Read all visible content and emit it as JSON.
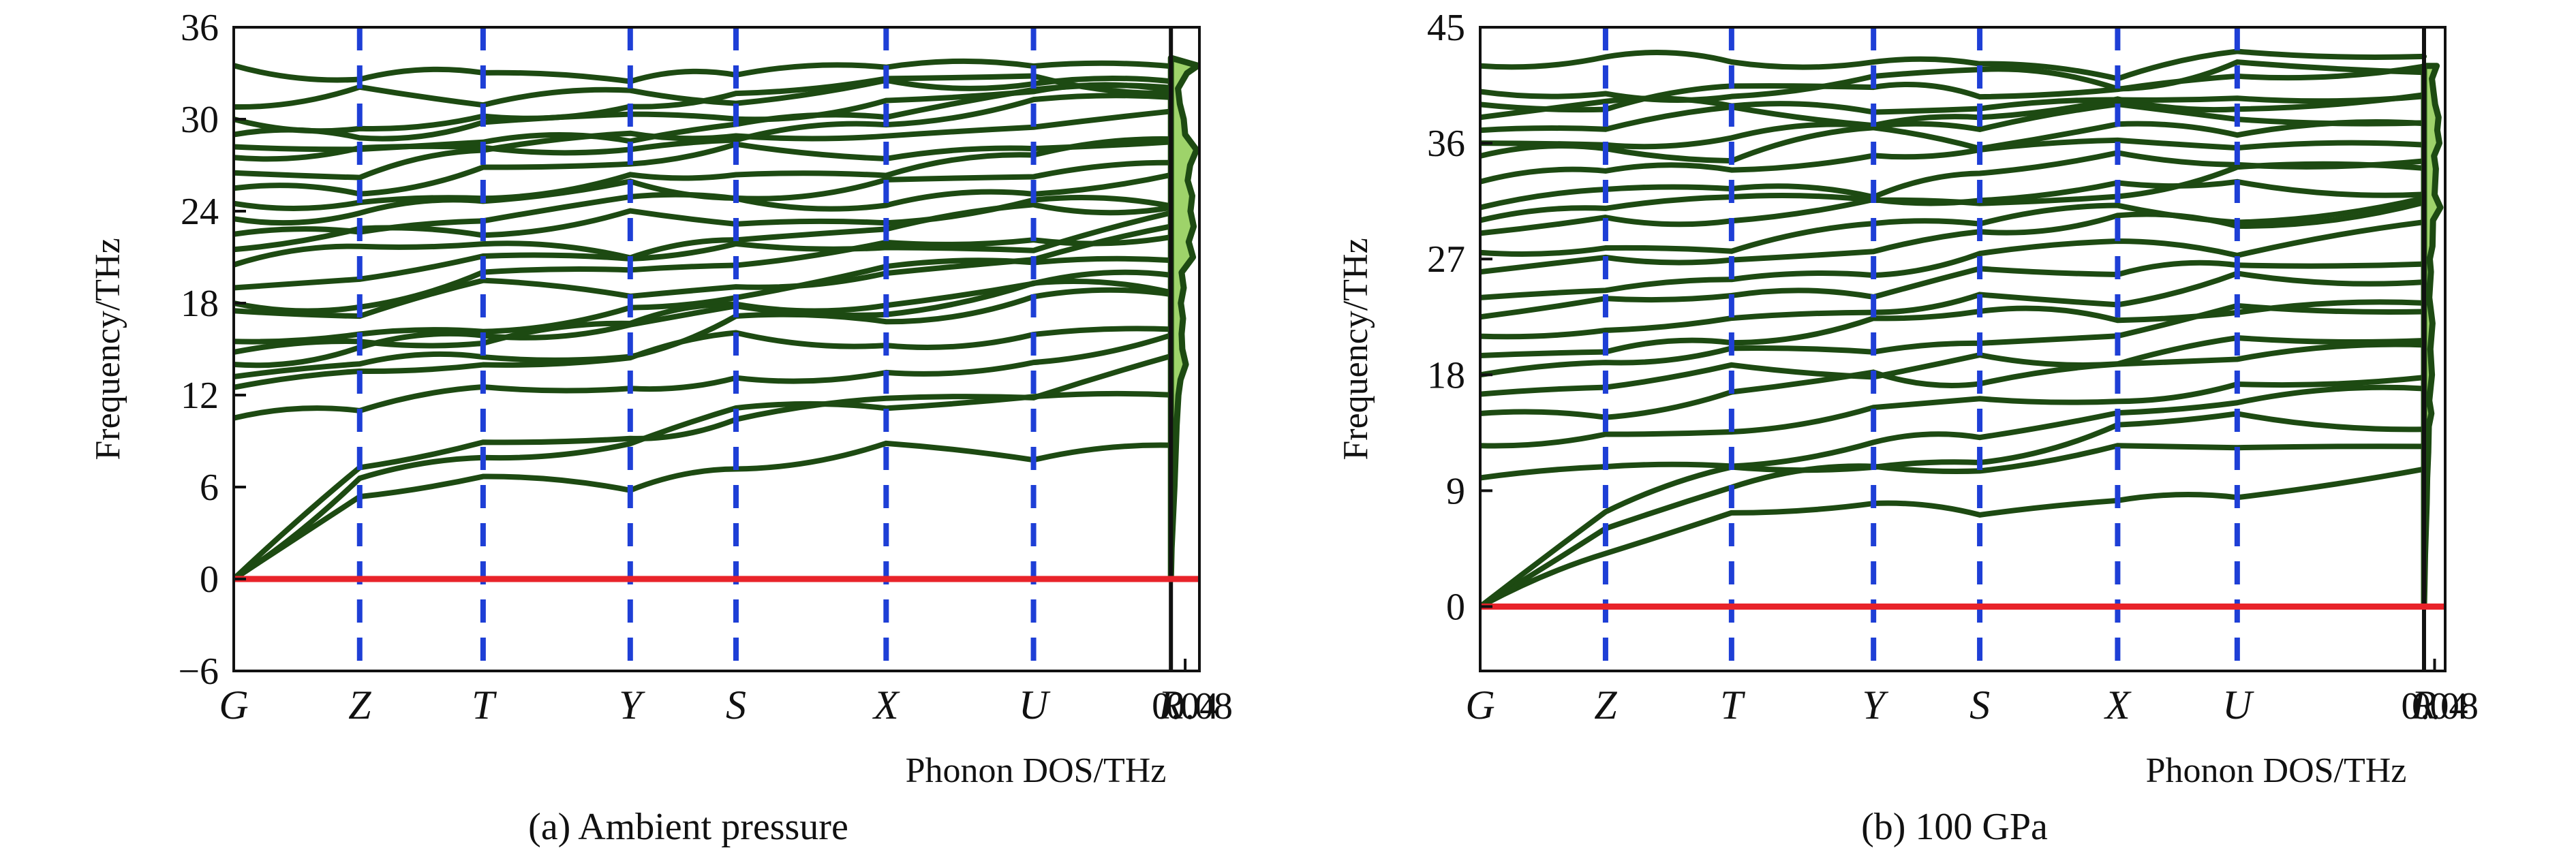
{
  "figure": {
    "caption_a": "(a) Ambient pressure",
    "caption_b": "(b) 100 GPa"
  },
  "colors": {
    "band": "#1d4a12",
    "band_edge": "#8a7a3a",
    "kpath": "#1e3fd6",
    "zero_line": "#e8232a",
    "dos_fill": "#9ed36a",
    "dos_line": "#1d4a12",
    "axis": "#111111"
  },
  "chart_data": [
    {
      "type": "line",
      "title": "(a) Ambient pressure",
      "ylabel": "Frequency/THz",
      "xlabel_dos": "Phonon DOS/THz",
      "ylim": [
        -6,
        36
      ],
      "yticks": [
        -6,
        0,
        6,
        12,
        18,
        24,
        30,
        36
      ],
      "kpoints": [
        "G",
        "Z",
        "T",
        "Y",
        "S",
        "X",
        "U",
        "R"
      ],
      "dos_xlim": [
        0,
        0.08
      ],
      "dos_xticks": [
        "0.04",
        "0.08"
      ],
      "zero_line": 0,
      "band_start_values": [
        0.0,
        0.0,
        0.0,
        10.5,
        12.5,
        13.2,
        14.0,
        14.8,
        15.5,
        17.5,
        18.0,
        19.0,
        20.5,
        21.5,
        22.5,
        23.5,
        24.5,
        25.5,
        26.5,
        27.5,
        28.2,
        29.0,
        30.0,
        30.8,
        33.5
      ],
      "band_end_values": [
        9.0,
        13.0,
        13.5,
        15.5,
        17.0,
        18.5,
        19.5,
        20.5,
        21.0,
        22.0,
        22.5,
        23.0,
        24.0,
        25.0,
        26.5,
        27.5,
        28.0,
        29.0,
        30.5,
        31.0,
        31.5,
        32.0,
        32.5,
        33.0,
        33.5
      ],
      "dos": {
        "freq": [
          0,
          2,
          4,
          6,
          8,
          10,
          12,
          13,
          14,
          15,
          16,
          17,
          18,
          19,
          20,
          21,
          22,
          23,
          24,
          25,
          26,
          27,
          28,
          29,
          30,
          31,
          32,
          33,
          33.5,
          34
        ],
        "value": [
          0.0,
          0.002,
          0.006,
          0.01,
          0.013,
          0.016,
          0.021,
          0.027,
          0.042,
          0.032,
          0.03,
          0.034,
          0.028,
          0.036,
          0.03,
          0.062,
          0.05,
          0.064,
          0.055,
          0.06,
          0.047,
          0.054,
          0.072,
          0.04,
          0.036,
          0.025,
          0.02,
          0.045,
          0.076,
          0.0
        ]
      }
    },
    {
      "type": "line",
      "title": "(b) 100 GPa",
      "ylabel": "Frequency/THz",
      "xlabel_dos": "Phonon DOS/THz",
      "ylim": [
        -5,
        45
      ],
      "yticks": [
        0,
        9,
        18,
        27,
        36,
        45
      ],
      "kpoints": [
        "G",
        "Z",
        "T",
        "Y",
        "S",
        "X",
        "U",
        "R"
      ],
      "dos_xlim": [
        0,
        0.08
      ],
      "dos_xticks": [
        "0.04",
        "0.08"
      ],
      "zero_line": 0,
      "band_start_values": [
        0.0,
        0.0,
        0.0,
        10.0,
        12.5,
        15.0,
        16.5,
        18.0,
        19.5,
        21.0,
        22.5,
        24.0,
        26.0,
        27.5,
        29.0,
        30.0,
        31.0,
        33.0,
        35.0,
        36.0,
        37.0,
        38.0,
        39.0,
        40.0,
        42.0
      ],
      "band_end_values": [
        10.0,
        13.5,
        15.0,
        17.0,
        18.5,
        20.0,
        21.5,
        23.0,
        24.5,
        26.0,
        27.5,
        29.0,
        30.5,
        31.5,
        33.0,
        34.0,
        35.5,
        36.5,
        37.5,
        38.5,
        39.5,
        40.5,
        41.0,
        41.5,
        42.0
      ],
      "dos": {
        "freq": [
          0,
          2,
          4,
          6,
          8,
          10,
          12,
          14,
          15,
          16,
          18,
          20,
          22,
          24,
          26,
          27,
          28,
          30,
          31,
          32,
          34,
          35,
          36,
          37,
          38,
          39,
          40,
          41,
          42
        ],
        "value": [
          0.0,
          0.002,
          0.004,
          0.007,
          0.01,
          0.012,
          0.016,
          0.018,
          0.028,
          0.02,
          0.03,
          0.024,
          0.032,
          0.02,
          0.026,
          0.022,
          0.032,
          0.034,
          0.062,
          0.04,
          0.045,
          0.038,
          0.058,
          0.05,
          0.055,
          0.042,
          0.036,
          0.03,
          0.048
        ]
      }
    }
  ]
}
